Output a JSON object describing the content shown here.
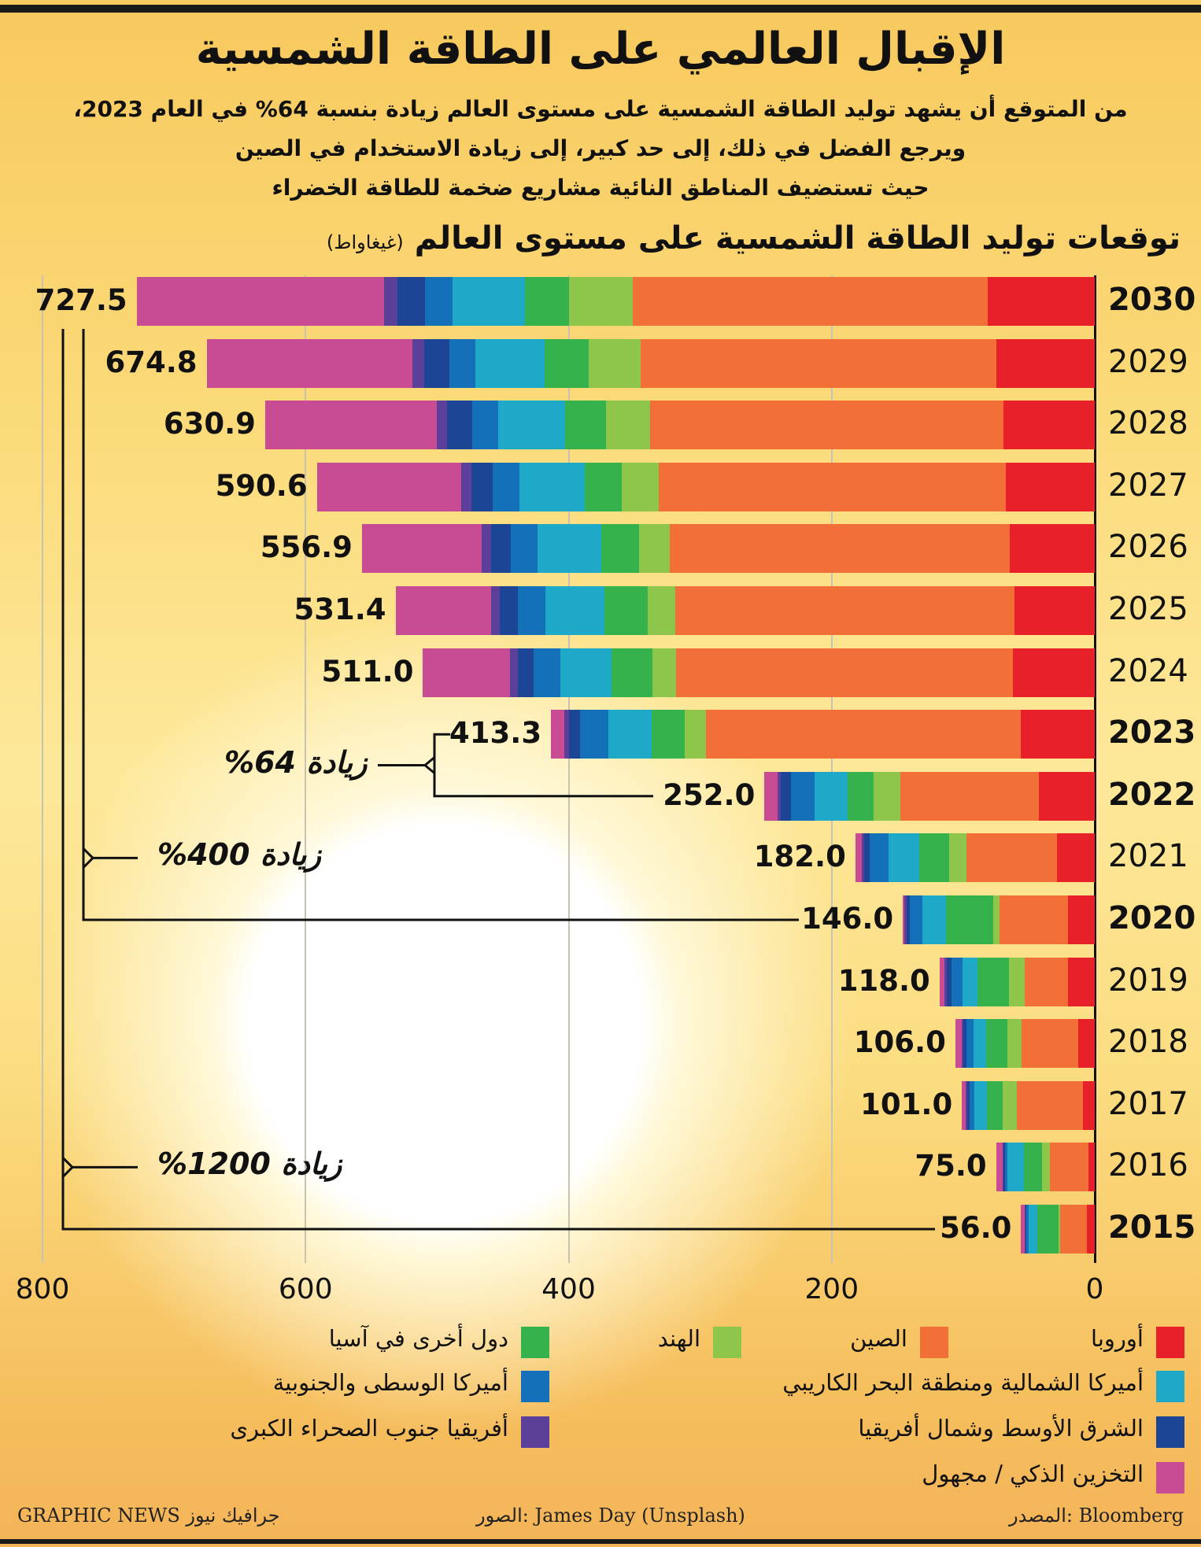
{
  "title": "الإقبال العالمي على الطاقة الشمسية",
  "subtitle_lines": [
    "من المتوقع أن يشهد توليد الطاقة الشمسية على مستوى العالم زيادة بنسبة 64% في العام 2023،",
    "ويرجع الفضل في ذلك، إلى حد كبير، إلى زيادة الاستخدام في الصين",
    "حيث تستضيف المناطق النائية مشاريع ضخمة للطاقة الخضراء"
  ],
  "chart_data": {
    "type": "bar",
    "orientation": "horizontal-stacked",
    "title": "توقعات توليد الطاقة الشمسية على مستوى العالم",
    "unit": "(غيغاواط)",
    "xlim": [
      0,
      800
    ],
    "x_reversed": true,
    "xticks": [
      "0",
      "200",
      "400",
      "600",
      "800"
    ],
    "grid": true,
    "legend_position": "bottom",
    "categories": [
      "2030",
      "2029",
      "2028",
      "2027",
      "2026",
      "2025",
      "2024",
      "2023",
      "2022",
      "2021",
      "2020",
      "2019",
      "2018",
      "2017",
      "2016",
      "2015"
    ],
    "bold_categories": [
      "2030",
      "2023",
      "2022",
      "2020",
      "2015"
    ],
    "totals": [
      "727.5",
      "674.8",
      "630.9",
      "590.6",
      "556.9",
      "531.4",
      "511.0",
      "413.3",
      "252.0",
      "182.0",
      "146.0",
      "118.0",
      "106.0",
      "101.0",
      "75.0",
      "56.0"
    ],
    "series": [
      {
        "name": "أوروبا",
        "color": "#e8202a",
        "values": [
          81.5,
          74.8,
          69.5,
          68,
          65,
          61.3,
          62.8,
          56.8,
          42.6,
          29.2,
          20.9,
          20.9,
          12.7,
          9,
          5.2,
          6
        ]
      },
      {
        "name": "الصين",
        "color": "#f26f37",
        "values": [
          270,
          270.7,
          269,
          264,
          258.7,
          258,
          255.7,
          239.3,
          105.4,
          68.8,
          51.6,
          32.9,
          43.4,
          50.8,
          29.2,
          20.9
        ]
      },
      {
        "name": "الهند",
        "color": "#8dc64b",
        "values": [
          48.6,
          39.6,
          33.6,
          27.7,
          23.2,
          20.9,
          17.9,
          15.7,
          20.2,
          12.7,
          5.2,
          12,
          10.5,
          10.5,
          6,
          0.8
        ]
      },
      {
        "name": "دول أخرى في آسيا",
        "color": "#35b24b",
        "values": [
          33.6,
          33.6,
          30.7,
          28.4,
          28.4,
          32.9,
          31.4,
          25.4,
          20.2,
          23.2,
          35.9,
          23.9,
          16.4,
          12,
          13.5,
          16.4
        ]
      },
      {
        "name": "أميركا الشمالية ومنطقة البحر الكاريبي",
        "color": "#1ea9c9",
        "values": [
          55,
          52.3,
          50.8,
          49.3,
          48.6,
          44.9,
          38.9,
          32.9,
          24.7,
          23.2,
          17.9,
          11.2,
          9.7,
          9.7,
          12.7,
          6.7
        ]
      },
      {
        "name": "أميركا الوسطى والجنوبية",
        "color": "#1470b8",
        "values": [
          21,
          20.2,
          20.2,
          20.9,
          20.2,
          20.9,
          20.2,
          21.7,
          17.9,
          14.2,
          9.7,
          8.2,
          5.2,
          3.7,
          2.2,
          1.5
        ]
      },
      {
        "name": "الشرق الأوسط وشمال أفريقيا",
        "color": "#1c4595",
        "values": [
          21,
          18.7,
          18.7,
          15.7,
          15,
          13.5,
          12,
          8.2,
          8.2,
          4.5,
          2.2,
          3.7,
          2.2,
          1.5,
          1,
          0.7
        ]
      },
      {
        "name": "أفريقيا جنوب الصحراء الكبرى",
        "color": "#5b3f98",
        "values": [
          9.7,
          9,
          8.2,
          8.2,
          7.5,
          6.7,
          6,
          3.7,
          2.2,
          1.5,
          1.5,
          1.5,
          1.5,
          1,
          0.7,
          0.5
        ]
      },
      {
        "name": "التخزين الذكي / مجهول",
        "color": "#c94b94",
        "values": [
          188,
          156.3,
          130,
          109.2,
          90.5,
          72.5,
          65.8,
          9.7,
          9.7,
          4.7,
          1,
          3.7,
          4.4,
          2.8,
          4.5,
          2.5
        ]
      }
    ],
    "annotations": [
      {
        "text": "زيادة 64%",
        "from": "2022",
        "to": "2023"
      },
      {
        "text": "زيادة 400%",
        "from": "2020",
        "to": "2030"
      },
      {
        "text": "زيادة 1200%",
        "from": "2015",
        "to": "2030"
      }
    ]
  },
  "footer": {
    "source": "المصدر: Bloomberg",
    "photo": "الصور: James Day (Unsplash)",
    "brand": "GRAPHIC NEWS جرافيك نيوز"
  }
}
